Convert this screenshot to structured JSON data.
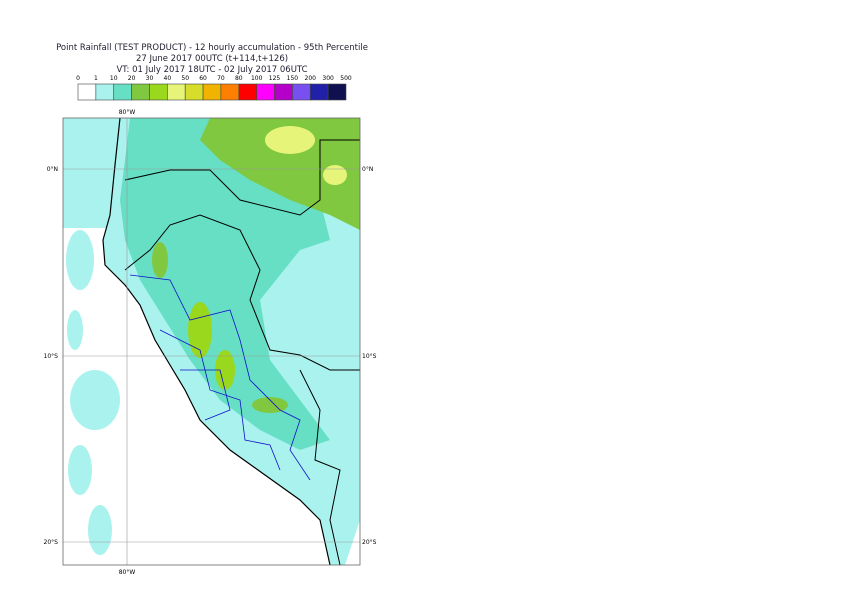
{
  "header": {
    "title": "Point Rainfall (TEST PRODUCT) - 12 hourly accumulation - 95th Percentile",
    "subtitle": "27 June 2017 00UTC (t+114,t+126)",
    "valid_time": "VT: 01 July 2017 18UTC - 02 July 2017 06UTC"
  },
  "legend": {
    "thresholds": [
      0,
      1,
      10,
      20,
      30,
      40,
      50,
      60,
      70,
      80,
      100,
      125,
      150,
      200,
      300,
      500
    ],
    "colors": [
      "#ffffff",
      "#aaf2ee",
      "#66dfc4",
      "#80c840",
      "#9ad81e",
      "#e6f57a",
      "#d6dd2a",
      "#f0b400",
      "#ff8000",
      "#ff0000",
      "#ff00ff",
      "#b400c8",
      "#7850f0",
      "#2020a8",
      "#101050"
    ]
  },
  "map": {
    "lon_labels": [
      "80°W"
    ],
    "lat_labels": [
      "0°N",
      "10°S",
      "20°S"
    ]
  }
}
